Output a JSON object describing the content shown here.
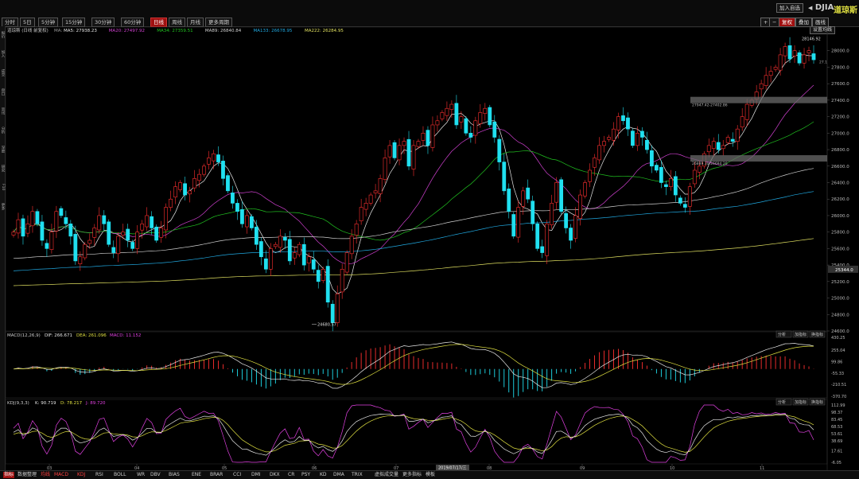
{
  "header": {
    "periods": [
      "分时",
      "5日",
      "5分钟",
      "15分钟",
      "30分钟",
      "60分钟",
      "日线",
      "周线",
      "月线",
      "更多周期"
    ],
    "active_period": 6,
    "add_watchlist": "加入自选",
    "symbol_code": "DJIA",
    "symbol_name": "道琼斯",
    "tools": [
      "+",
      "−",
      "复权",
      "叠加",
      "画线"
    ],
    "settings_label": "设置均线"
  },
  "left_strip_labels": [
    "报价",
    "加入",
    "成交",
    "盘口",
    "资讯",
    "分析",
    "深度",
    "研究",
    "F10",
    "更多"
  ],
  "main": {
    "info_prefix": "道琼斯 (日线 前复权)",
    "ma_label": "MA:",
    "ma": [
      {
        "label": "MA5: 27938.23",
        "color": "#e8e8e8"
      },
      {
        "label": "MA20: 27497.92",
        "color": "#d040d0"
      },
      {
        "label": "MA34: 27359.51",
        "color": "#20c020"
      },
      {
        "label": "MA89: 26840.84",
        "color": "#d0d0d0"
      },
      {
        "label": "MA133: 26678.95",
        "color": "#20a8e0"
      },
      {
        "label": "MA222: 26284.95",
        "color": "#e0e060"
      }
    ],
    "price_axis": [
      "28000.0",
      "27800.0",
      "27600.0",
      "27400.0",
      "27200.0",
      "27000.0",
      "26800.0",
      "26600.0",
      "26400.0",
      "26200.0",
      "26000.0",
      "25800.0",
      "25600.0",
      "25400.0",
      "25200.0",
      "25000.0",
      "24800.0",
      "24600.0"
    ],
    "current_price_label": "25344.0",
    "high_label": "28146.92",
    "low_label": "24680.57",
    "side_label": "27.1",
    "ref_lines": [
      {
        "label": "27947.42-27402.86"
      },
      {
        "label": "26889.30-26694.20"
      }
    ]
  },
  "macd": {
    "title": "MACD(12,26,9)",
    "dif": "DIF: 266.671",
    "dea": "DEA: 261.096",
    "macd": "MACD: 11.152",
    "buttons": [
      "分析",
      "加指标",
      "换指标"
    ],
    "axis": [
      "430.25",
      "255.04",
      "99.86",
      "-55.33",
      "-210.51",
      "-370.70"
    ]
  },
  "kdj": {
    "title": "KDJ(9,3,3)",
    "k": "K: 90.719",
    "d": "D: 78.217",
    "j": "J: 89.720",
    "buttons": [
      "分析",
      "加指标",
      "换指标"
    ],
    "axis": [
      "112.99",
      "98.37",
      "83.45",
      "68.53",
      "53.61",
      "38.69",
      "17.61",
      "-6.05"
    ]
  },
  "time_axis": {
    "labels": [
      "03",
      "04",
      "05",
      "06",
      "07",
      "08",
      "09",
      "10",
      "11"
    ],
    "highlight": "2019/07/17/三"
  },
  "bottom_tabs": [
    "指标",
    "数据整理",
    "均线",
    "MACD",
    "KDJ",
    "RSI",
    "BOLL",
    "WR",
    "DBV",
    "BIAS",
    "ENE",
    "BRAR",
    "CCI",
    "DMI",
    "DKX",
    "CR",
    "PSY",
    "KD",
    "DMA",
    "TRIX",
    "虚拟成交量",
    "更多指标",
    "模板"
  ],
  "colors": {
    "up": "#ff3030",
    "down": "#20e0f0",
    "bg": "#000000",
    "grid": "#1c1c1c",
    "accent": "#a01010"
  },
  "chart_data": {
    "type": "candlestick",
    "title": "道琼斯 (日线 前复权)",
    "ylim": [
      24600,
      28200
    ],
    "x_labels": [
      "03",
      "04",
      "05",
      "06",
      "07",
      "08",
      "09",
      "10",
      "11"
    ],
    "closes": [
      25800,
      25950,
      25750,
      25900,
      26050,
      25900,
      25700,
      25600,
      25800,
      26050,
      26000,
      25900,
      25750,
      25450,
      25500,
      25650,
      25700,
      25850,
      26000,
      25900,
      25650,
      25550,
      25750,
      25800,
      25700,
      25600,
      25800,
      25900,
      26000,
      25850,
      25700,
      25850,
      26100,
      26200,
      26350,
      26400,
      26250,
      26300,
      26450,
      26500,
      26600,
      26700,
      26750,
      26650,
      26450,
      26300,
      26150,
      26050,
      25900,
      26000,
      25850,
      25650,
      25500,
      25350,
      25600,
      25650,
      25750,
      25700,
      25450,
      25550,
      25650,
      25400,
      25500,
      25350,
      25200,
      25350,
      24950,
      24700,
      25050,
      25350,
      25550,
      25750,
      25900,
      26100,
      26150,
      26250,
      26300,
      26450,
      26700,
      26850,
      26700,
      26850,
      26900,
      26600,
      26850,
      26900,
      27000,
      26850,
      27100,
      27150,
      27250,
      27300,
      27350,
      27100,
      27200,
      27000,
      26950,
      27150,
      27250,
      27300,
      27100,
      26950,
      26650,
      26300,
      26050,
      25750,
      26100,
      26300,
      26200,
      25900,
      25600,
      25550,
      25900,
      26150,
      26400,
      26050,
      25850,
      25700,
      26000,
      26250,
      26400,
      26550,
      26700,
      26850,
      26900,
      26950,
      27050,
      27200,
      27150,
      27050,
      26850,
      27000,
      26950,
      26800,
      26600,
      26550,
      26400,
      26350,
      26450,
      26250,
      26150,
      26100,
      26350,
      26550,
      26600,
      26750,
      26850,
      26900,
      26800,
      26850,
      26950,
      26900,
      27050,
      27200,
      27350,
      27400,
      27500,
      27600,
      27700,
      27750,
      27800,
      27950,
      28050,
      27900,
      28000,
      27850,
      27950,
      28000,
      27890
    ]
  }
}
